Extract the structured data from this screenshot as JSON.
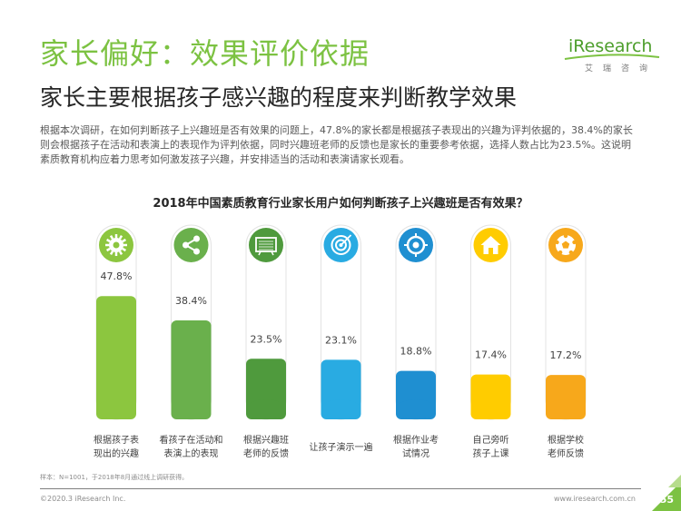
{
  "header": {
    "title": "家长偏好：效果评价依据",
    "subtitle": "家长主要根据孩子感兴趣的程度来判断教学效果"
  },
  "logo": {
    "text": "iResearch",
    "cn": "艾瑞咨询",
    "color": "#4d9e2c"
  },
  "intro": "根据本次调研，在如何判断孩子上兴趣班是否有效果的问题上，47.8%的家长都是根据孩子表现出的兴趣为评判依据的，38.4%的家长则会根据孩子在活动和表演上的表现作为评判依据，同时兴趣班老师的反馈也是家长的重要参考依据，选择人数占比为23.5%。这说明素质教育机构应着力思考如何激发孩子兴趣，并安排适当的活动和表演请家长观看。",
  "chart_data": {
    "type": "bar",
    "title": "2018年中国素质教育行业家长用户如何判断孩子上兴趣班是否有效果？",
    "categories": [
      "根据孩子表\n现出的兴趣",
      "看孩子在活动和\n表演上的表现",
      "根据兴趣班\n老师的反馈",
      "让孩子演示一遍",
      "根据作业考\n试情况",
      "自己旁听\n孩子上课",
      "根据学校\n老师反馈"
    ],
    "values": [
      47.8,
      38.4,
      23.5,
      23.1,
      18.8,
      17.4,
      17.2
    ],
    "value_labels": [
      "47.8%",
      "38.4%",
      "23.5%",
      "23.1%",
      "18.8%",
      "17.4%",
      "17.2%"
    ],
    "ylim": [
      0,
      100
    ],
    "colors": [
      "#8cc63f",
      "#6ab04c",
      "#4f9a3d",
      "#29abe2",
      "#1f8fd1",
      "#ffcc00",
      "#f7a81b"
    ],
    "icons": [
      "gear-icon",
      "share-icon",
      "blackboard-icon",
      "target-icon",
      "crosshair-icon",
      "home-icon",
      "ball-icon"
    ]
  },
  "footnote": "样本：N=1001，于2018年8月通过线上调研获得。",
  "footer": {
    "copyright": "©2020.3 iResearch Inc.",
    "website": "www.iresearch.com.cn",
    "page": "55",
    "accent": "#7cc242"
  }
}
